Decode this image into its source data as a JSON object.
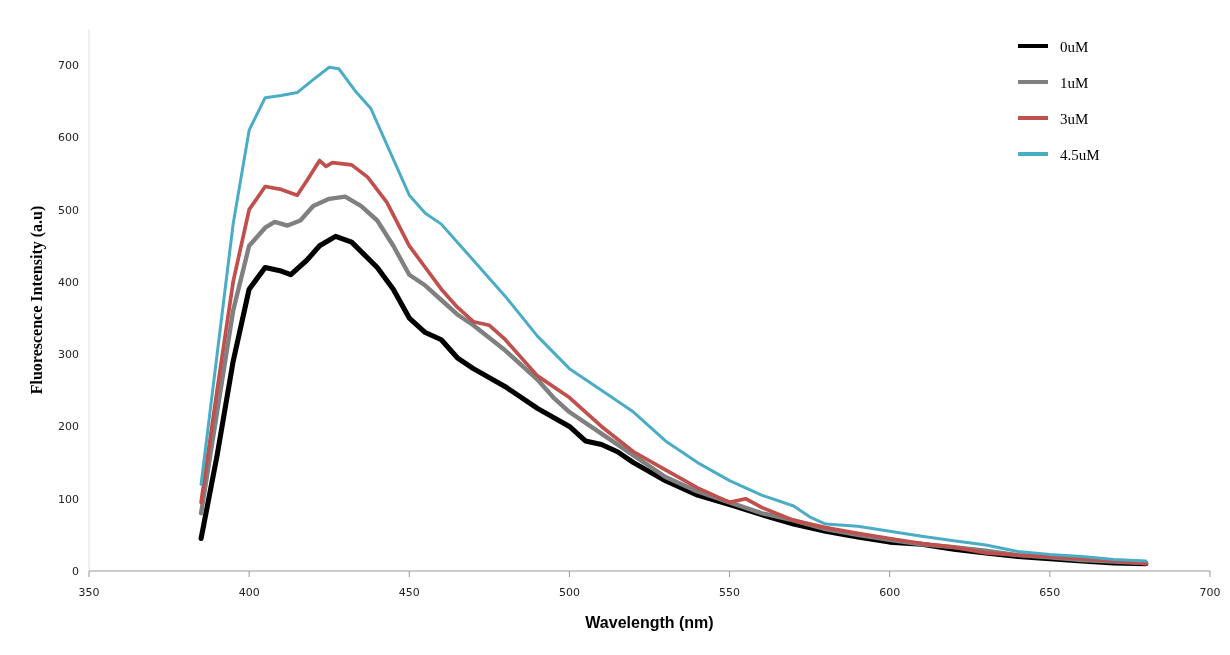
{
  "chart_data": {
    "type": "line",
    "xlabel": "Wavelength (nm)",
    "ylabel": "Fluorescence Intensity (a.u)",
    "xlim": [
      350,
      700
    ],
    "xticks": [
      350,
      400,
      450,
      500,
      550,
      600,
      650,
      700
    ],
    "ylim": [
      0,
      750
    ],
    "yticks": [
      0,
      100,
      200,
      300,
      400,
      500,
      600,
      700
    ],
    "grid": false,
    "legend": "top right",
    "marker": "none",
    "line_style": "solid",
    "series": [
      {
        "name": "0uM",
        "color": "#000000",
        "x": [
          385,
          390,
          395,
          400,
          405,
          410,
          413,
          418,
          422,
          427,
          432,
          440,
          445,
          450,
          455,
          460,
          465,
          470,
          480,
          490,
          500,
          505,
          510,
          515,
          520,
          530,
          540,
          550,
          560,
          570,
          580,
          590,
          600,
          610,
          620,
          630,
          640,
          650,
          660,
          670,
          680
        ],
        "values": [
          45,
          160,
          290,
          390,
          420,
          415,
          410,
          430,
          450,
          463,
          455,
          420,
          390,
          350,
          330,
          320,
          295,
          280,
          255,
          225,
          200,
          180,
          175,
          165,
          150,
          125,
          105,
          92,
          78,
          65,
          55,
          47,
          40,
          37,
          30,
          25,
          20,
          17,
          14,
          11,
          10
        ]
      },
      {
        "name": "1uM",
        "color": "#808080",
        "x": [
          385,
          390,
          395,
          400,
          405,
          408,
          412,
          416,
          420,
          425,
          430,
          435,
          440,
          445,
          450,
          455,
          460,
          465,
          470,
          480,
          490,
          495,
          500,
          510,
          520,
          530,
          540,
          550,
          560,
          570,
          580,
          590,
          600,
          610,
          620,
          630,
          640,
          650,
          660,
          670,
          680
        ],
        "values": [
          80,
          220,
          360,
          450,
          475,
          483,
          478,
          485,
          505,
          515,
          518,
          505,
          485,
          450,
          410,
          395,
          375,
          355,
          340,
          305,
          265,
          240,
          220,
          190,
          160,
          130,
          110,
          95,
          80,
          70,
          58,
          50,
          43,
          37,
          33,
          28,
          22,
          19,
          15,
          13,
          11
        ]
      },
      {
        "name": "3uM",
        "color": "#c0504d",
        "x": [
          385,
          390,
          395,
          400,
          405,
          410,
          415,
          418,
          422,
          424,
          426,
          432,
          437,
          443,
          450,
          455,
          460,
          465,
          470,
          475,
          480,
          490,
          500,
          510,
          520,
          530,
          540,
          550,
          555,
          560,
          570,
          580,
          590,
          600,
          610,
          620,
          630,
          640,
          650,
          660,
          670,
          680
        ],
        "values": [
          95,
          250,
          400,
          500,
          532,
          528,
          520,
          540,
          568,
          560,
          565,
          562,
          545,
          510,
          450,
          420,
          390,
          365,
          345,
          340,
          320,
          270,
          240,
          200,
          165,
          140,
          115,
          95,
          100,
          88,
          70,
          60,
          52,
          45,
          38,
          33,
          25,
          22,
          20,
          17,
          14,
          10
        ]
      },
      {
        "name": "4.5uM",
        "color": "#4bacc6",
        "x": [
          385,
          390,
          395,
          400,
          405,
          410,
          415,
          420,
          425,
          428,
          433,
          438,
          445,
          450,
          455,
          460,
          465,
          470,
          480,
          490,
          500,
          510,
          520,
          530,
          540,
          550,
          560,
          570,
          575,
          580,
          590,
          600,
          610,
          620,
          630,
          640,
          650,
          660,
          670,
          680
        ],
        "values": [
          120,
          300,
          480,
          610,
          655,
          658,
          662,
          680,
          697,
          695,
          665,
          640,
          570,
          520,
          495,
          480,
          455,
          430,
          380,
          325,
          280,
          250,
          220,
          180,
          150,
          125,
          105,
          90,
          75,
          65,
          62,
          55,
          48,
          42,
          36,
          27,
          23,
          20,
          16,
          14
        ]
      }
    ]
  }
}
